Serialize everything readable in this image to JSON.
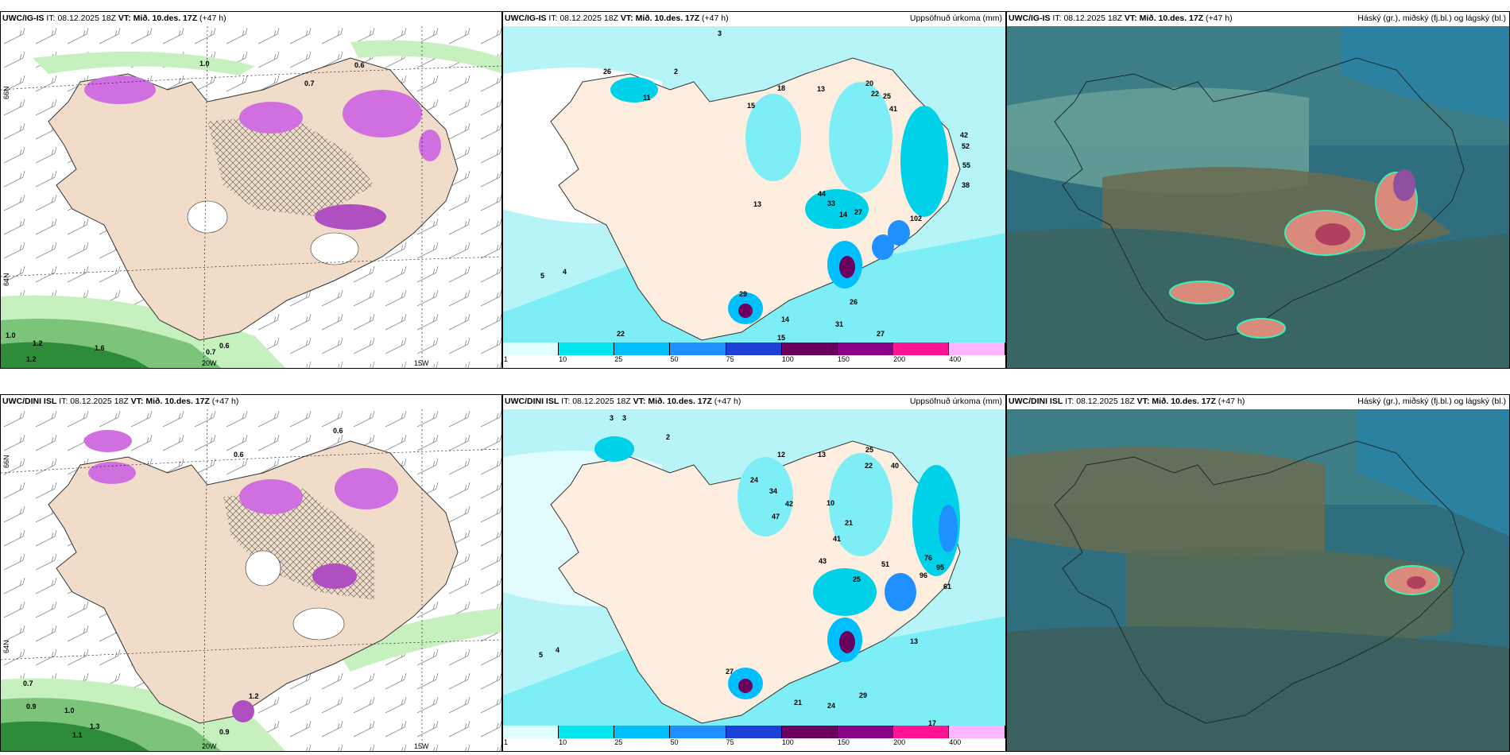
{
  "rows": [
    {
      "model": "UWC/IG-IS",
      "it_label": "IT:",
      "it_value": "08.12.2025 18Z",
      "vt_label": "VT:",
      "vt_value": "Mið. 10.des. 17Z",
      "lead": "(+47 h)"
    },
    {
      "model": "UWC/DINI ISL",
      "it_label": "IT:",
      "it_value": "08.12.2025 18Z",
      "vt_label": "VT:",
      "vt_value": "Mið. 10.des. 17Z",
      "lead": "(+47 h)"
    }
  ],
  "precip_title": "Uppsöfnuð úrkoma (mm)",
  "cloud_title": "Háský (gr.), miðský (fj.bl.) og lágský (bl.)",
  "axis": {
    "lat_top": "66N",
    "lat_bottom": "64N",
    "lon_left": "20W",
    "lon_right": "15W"
  },
  "colorbar": {
    "ticks": [
      "1",
      "10",
      "25",
      "50",
      "75",
      "100",
      "150",
      "200",
      "400"
    ],
    "colors": [
      "#e0ffff",
      "#00e5ee",
      "#00bfff",
      "#1e90ff",
      "#1c3fd6",
      "#6b005f",
      "#8b008b",
      "#ff1493",
      "#ffb6ff"
    ]
  },
  "wind_labels_top": [
    "1.0",
    "0.6",
    "0.7",
    "1.2",
    "1.6",
    "1.0",
    "1.2",
    "0.6",
    "0.7"
  ],
  "wind_labels_bottom": [
    "0.6",
    "0.6",
    "0.7",
    "0.9",
    "1.0",
    "1.3",
    "1.1",
    "0.9",
    "1.2"
  ],
  "precip_numbers_top": [
    "3",
    "2",
    "26",
    "11",
    "15",
    "18",
    "13",
    "20",
    "22",
    "25",
    "41",
    "42",
    "52",
    "55",
    "38",
    "44",
    "33",
    "27",
    "14",
    "29",
    "22",
    "15",
    "31",
    "26",
    "27",
    "14",
    "102",
    "13",
    "5",
    "4"
  ],
  "precip_numbers_bottom": [
    "3",
    "3",
    "2",
    "12",
    "13",
    "25",
    "40",
    "22",
    "24",
    "34",
    "47",
    "42",
    "21",
    "10",
    "41",
    "43",
    "51",
    "76",
    "95",
    "96",
    "61",
    "25",
    "27",
    "24",
    "29",
    "21",
    "13",
    "17",
    "5",
    "4"
  ]
}
